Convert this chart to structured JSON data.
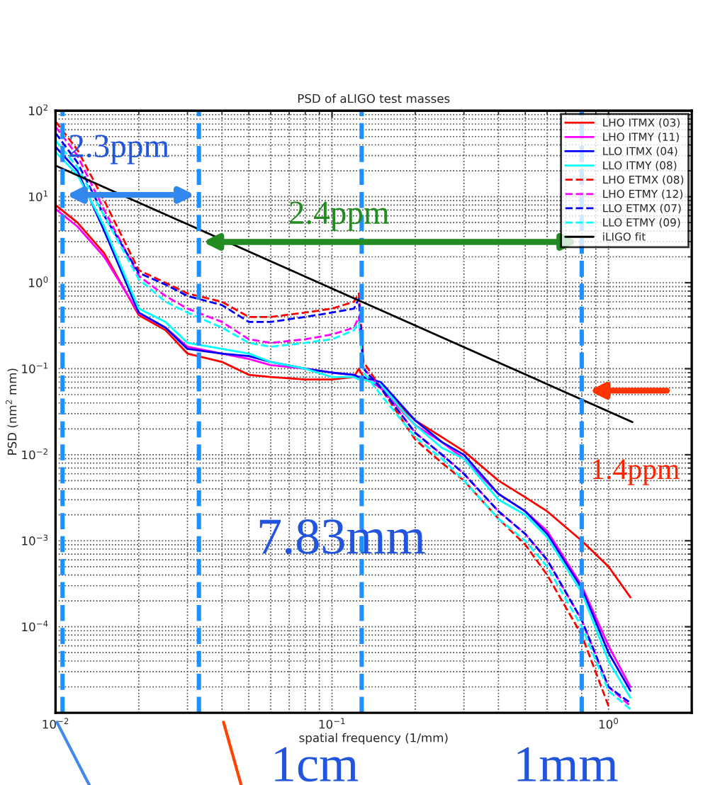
{
  "chart_data": {
    "type": "line",
    "title": "PSD of aLIGO test masses",
    "xlabel": "spatial frequency (1/mm)",
    "ylabel": "PSD (nm$^{2}$ mm)",
    "log": "xy",
    "grid": true,
    "legend": "top right",
    "xlim": [
      0.01,
      2
    ],
    "ylim": [
      1e-05,
      100
    ],
    "xticks": [
      {
        "value": 0.01,
        "label": "10$^{−2}$"
      },
      {
        "value": 0.1,
        "label": "10$^{−1}$"
      },
      {
        "value": 1,
        "label": "10$^{0}$"
      }
    ],
    "yticks": [
      {
        "value": 0.0001,
        "label": "10$^{−4}$"
      },
      {
        "value": 0.001,
        "label": "10$^{−3}$"
      },
      {
        "value": 0.01,
        "label": "10$^{−2}$"
      },
      {
        "value": 0.1,
        "label": "10$^{−1}$"
      },
      {
        "value": 1,
        "label": "10$^{0}$"
      },
      {
        "value": 10,
        "label": "10$^{1}$"
      },
      {
        "value": 100,
        "label": "10$^{2}$"
      }
    ],
    "x": [
      0.01,
      0.012,
      0.015,
      0.02,
      0.025,
      0.03,
      0.04,
      0.05,
      0.06,
      0.08,
      0.1,
      0.12,
      0.125,
      0.13,
      0.15,
      0.2,
      0.25,
      0.3,
      0.4,
      0.5,
      0.6,
      0.8,
      1.0,
      1.2
    ],
    "series": [
      {
        "name": "LHO ITMX (03)",
        "color": "#ff0000",
        "line_style": "solid",
        "values": [
          8,
          5,
          2.2,
          0.42,
          0.28,
          0.15,
          0.12,
          0.085,
          0.08,
          0.075,
          0.075,
          0.08,
          0.1,
          0.08,
          0.06,
          0.025,
          0.016,
          0.011,
          0.005,
          0.0032,
          0.0022,
          0.001,
          0.0005,
          0.00022
        ]
      },
      {
        "name": "LHO ITMY (11)",
        "color": "#ff00ff",
        "line_style": "solid",
        "values": [
          7.2,
          4.5,
          2.0,
          0.44,
          0.3,
          0.18,
          0.15,
          0.13,
          0.11,
          0.1,
          0.09,
          0.085,
          0.08,
          0.08,
          0.06,
          0.022,
          0.014,
          0.009,
          0.0035,
          0.0022,
          0.0013,
          0.0003,
          6e-05,
          2e-05
        ]
      },
      {
        "name": "LLO ITMX (04)",
        "color": "#0000ff",
        "line_style": "solid",
        "values": [
          38,
          20,
          4,
          0.45,
          0.3,
          0.17,
          0.15,
          0.14,
          0.12,
          0.1,
          0.09,
          0.085,
          0.08,
          0.08,
          0.07,
          0.025,
          0.014,
          0.01,
          0.0035,
          0.0022,
          0.0012,
          0.00028,
          5e-05,
          1.8e-05
        ]
      },
      {
        "name": "LLO ITMY (08)",
        "color": "#00ffff",
        "line_style": "solid",
        "values": [
          33,
          18,
          4.5,
          0.5,
          0.35,
          0.2,
          0.17,
          0.15,
          0.12,
          0.1,
          0.08,
          0.08,
          0.075,
          0.075,
          0.065,
          0.022,
          0.012,
          0.009,
          0.003,
          0.002,
          0.0011,
          0.00025,
          4e-05,
          1.5e-05
        ]
      },
      {
        "name": "LHO ETMX (08)",
        "color": "#ff0000",
        "line_style": "dashed",
        "values": [
          75,
          35,
          9,
          1.4,
          1.0,
          0.75,
          0.6,
          0.4,
          0.4,
          0.45,
          0.5,
          0.6,
          0.75,
          0.12,
          0.06,
          0.015,
          0.008,
          0.005,
          0.0018,
          0.0009,
          0.0004,
          8e-05,
          1.2e-05,
          null
        ]
      },
      {
        "name": "LHO ETMY (12)",
        "color": "#ff00ff",
        "line_style": "dashed",
        "values": [
          65,
          30,
          7,
          1.2,
          0.7,
          0.5,
          0.35,
          0.22,
          0.2,
          0.22,
          0.25,
          0.3,
          0.4,
          0.1,
          0.06,
          0.018,
          0.01,
          0.006,
          0.0022,
          0.0012,
          0.0006,
          0.00012,
          2e-05,
          1.2e-05
        ]
      },
      {
        "name": "LLO ETMX (07)",
        "color": "#0000ff",
        "line_style": "dashed",
        "values": [
          55,
          25,
          6,
          1.3,
          0.95,
          0.7,
          0.55,
          0.35,
          0.35,
          0.4,
          0.45,
          0.5,
          0.65,
          0.1,
          0.06,
          0.018,
          0.01,
          0.006,
          0.0022,
          0.0012,
          0.0006,
          0.00012,
          2e-05,
          1.3e-05
        ]
      },
      {
        "name": "LLO ETMY (09)",
        "color": "#00ffff",
        "line_style": "dashed",
        "values": [
          45,
          22,
          6,
          1.1,
          0.6,
          0.45,
          0.3,
          0.2,
          0.18,
          0.2,
          0.22,
          0.28,
          0.35,
          0.09,
          0.05,
          0.016,
          0.009,
          0.005,
          0.0018,
          0.001,
          0.0005,
          0.0001,
          1.8e-05,
          1.1e-05
        ]
      },
      {
        "name": "iLIGO fit",
        "color": "#000000",
        "line_style": "solid",
        "x": [
          0.01,
          1.22
        ],
        "values": [
          23,
          0.024
        ]
      }
    ],
    "ref_lines": [
      {
        "axis": "x",
        "value": 0.0106,
        "color": "#1e90ff",
        "line_style": "dashed"
      },
      {
        "axis": "x",
        "value": 0.033,
        "color": "#1e90ff",
        "line_style": "dashed"
      },
      {
        "axis": "x",
        "value": 0.128,
        "color": "#1e90ff",
        "line_style": "dashed"
      },
      {
        "axis": "x",
        "value": 0.8,
        "color": "#1e90ff",
        "line_style": "dashed"
      }
    ],
    "annotations": [
      "2.3ppm",
      "2.4ppm",
      "1.4ppm",
      "7.83mm",
      "1cm",
      "1mm"
    ]
  }
}
